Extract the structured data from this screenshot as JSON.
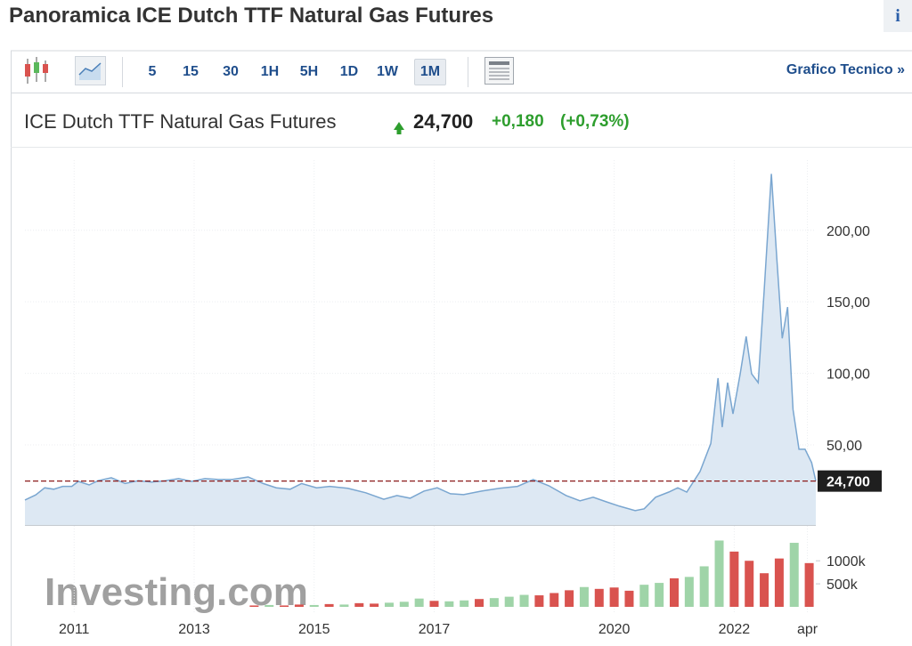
{
  "header": {
    "title": "Panoramica ICE Dutch TTF Natural Gas Futures",
    "info": "i"
  },
  "toolbar": {
    "intervals": [
      "5",
      "15",
      "30",
      "1H",
      "5H",
      "1D",
      "1W",
      "1M"
    ],
    "link": "Grafico Tecnico »"
  },
  "chart_data": {
    "type": "area",
    "title": "ICE Dutch TTF Natural Gas Futures",
    "last_price": {
      "value": 24.7,
      "label": "24,700"
    },
    "change": "+0,180",
    "change_pct": "(+0,73%)",
    "color": "#7aa6d0",
    "fill": "#dde8f3",
    "grid": true,
    "watermark": "Investing.com",
    "x": [
      2010.18,
      2010.36,
      2010.51,
      2010.66,
      2010.81,
      2010.96,
      2011.07,
      2011.25,
      2011.4,
      2011.62,
      2011.85,
      2012.07,
      2012.29,
      2012.52,
      2012.74,
      2012.96,
      2013.18,
      2013.41,
      2013.63,
      2013.9,
      2014.15,
      2014.37,
      2014.6,
      2014.79,
      2015.04,
      2015.26,
      2015.56,
      2015.86,
      2016.16,
      2016.38,
      2016.6,
      2016.83,
      2017.05,
      2017.27,
      2017.49,
      2017.79,
      2018.09,
      2018.39,
      2018.65,
      2018.91,
      2019.2,
      2019.43,
      2019.65,
      2019.87,
      2020.09,
      2020.35,
      2020.5,
      2020.69,
      2020.91,
      2021.06,
      2021.21,
      2021.43,
      2021.61,
      2021.73,
      2021.8,
      2021.89,
      2021.98,
      2022.1,
      2022.2,
      2022.29,
      2022.4,
      2022.5,
      2022.62,
      2022.71,
      2022.8,
      2022.89,
      2022.98,
      2023.08,
      2023.18,
      2023.29,
      2023.36
    ],
    "values": [
      11.5,
      15,
      20,
      19,
      21,
      21,
      24.5,
      22,
      25,
      27,
      23,
      25,
      24,
      25,
      26.4,
      24.5,
      26.4,
      25.8,
      25.8,
      27.6,
      23,
      20,
      19,
      23,
      20,
      21,
      19.6,
      16.5,
      12,
      14.6,
      12.7,
      17.7,
      20,
      15.8,
      15.2,
      17.7,
      19.6,
      21,
      25.8,
      21.4,
      14.6,
      10.9,
      13.4,
      10.2,
      7.1,
      4,
      5.3,
      13.4,
      17,
      20,
      17,
      31.4,
      51,
      96.6,
      62.4,
      93.5,
      71.7,
      99.7,
      125.8,
      99.7,
      93.5,
      158.7,
      239.4,
      180.4,
      124.5,
      146.3,
      74.8,
      46.9,
      46.9,
      37.6,
      24.7
    ],
    "xlim": [
      2010.18,
      2023.36
    ],
    "xticks": [
      2011,
      2013,
      2015,
      2017,
      2020,
      2022,
      {
        "value": 2023.22,
        "label": "apr"
      }
    ],
    "ylim": [
      -6,
      249
    ],
    "yticks": [
      {
        "value": 50,
        "label": "50,00"
      },
      {
        "value": 100,
        "label": "100,00"
      },
      {
        "value": 150,
        "label": "150,00"
      },
      {
        "value": 200,
        "label": "200,00"
      }
    ],
    "volume": {
      "x": [
        2014.0,
        2014.25,
        2014.5,
        2014.75,
        2015.0,
        2015.25,
        2015.5,
        2015.75,
        2016.0,
        2016.25,
        2016.5,
        2016.75,
        2017.0,
        2017.25,
        2017.5,
        2017.75,
        2018.0,
        2018.25,
        2018.5,
        2018.75,
        2019.0,
        2019.25,
        2019.5,
        2019.75,
        2020.0,
        2020.25,
        2020.5,
        2020.75,
        2021.0,
        2021.25,
        2021.5,
        2021.75,
        2022.0,
        2022.25,
        2022.5,
        2022.75,
        2023.0,
        2023.25
      ],
      "values": [
        30000,
        40000,
        30000,
        50000,
        40000,
        60000,
        50000,
        80000,
        70000,
        90000,
        110000,
        180000,
        130000,
        120000,
        140000,
        170000,
        190000,
        220000,
        260000,
        250000,
        300000,
        360000,
        430000,
        390000,
        420000,
        350000,
        480000,
        520000,
        620000,
        650000,
        880000,
        1440000,
        1200000,
        1000000,
        730000,
        1050000,
        1390000,
        950000
      ],
      "colors": [
        "#d9534f",
        "#9fd4a8",
        "#d9534f",
        "#d9534f",
        "#9fd4a8",
        "#d9534f",
        "#9fd4a8",
        "#d9534f",
        "#d9534f",
        "#9fd4a8",
        "#9fd4a8",
        "#9fd4a8",
        "#d9534f",
        "#9fd4a8",
        "#9fd4a8",
        "#d9534f",
        "#9fd4a8",
        "#9fd4a8",
        "#9fd4a8",
        "#d9534f",
        "#d9534f",
        "#d9534f",
        "#9fd4a8",
        "#d9534f",
        "#d9534f",
        "#d9534f",
        "#9fd4a8",
        "#9fd4a8",
        "#d9534f",
        "#9fd4a8",
        "#9fd4a8",
        "#9fd4a8",
        "#d9534f",
        "#d9534f",
        "#d9534f",
        "#d9534f",
        "#9fd4a8",
        "#d9534f"
      ],
      "ylim": [
        0,
        1700000
      ],
      "yticks": [
        {
          "value": 500000,
          "label": "500k"
        },
        {
          "value": 1000000,
          "label": "1000k"
        }
      ]
    }
  }
}
